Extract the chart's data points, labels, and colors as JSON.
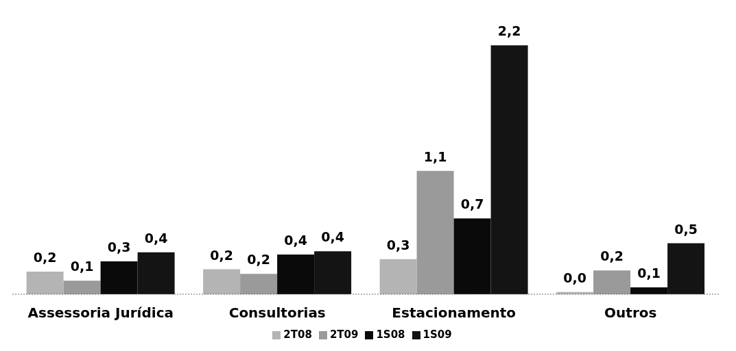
{
  "chart_data": {
    "type": "bar",
    "categories": [
      "Assessoria Jurídica",
      "Consultorias",
      "Estacionamento",
      "Outros"
    ],
    "series": [
      {
        "name": "2T08",
        "color": "#b4b4b4",
        "values": [
          0.2,
          0.22,
          0.31,
          0.02
        ],
        "value_labels": [
          "0,2",
          "0,2",
          "0,3",
          "0,0"
        ]
      },
      {
        "name": "2T09",
        "color": "#9a9a9a",
        "values": [
          0.12,
          0.18,
          1.09,
          0.21
        ],
        "value_labels": [
          "0,1",
          "0,2",
          "1,1",
          "0,2"
        ]
      },
      {
        "name": "1S08",
        "color": "#0a0a0a",
        "values": [
          0.29,
          0.35,
          0.67,
          0.06
        ],
        "value_labels": [
          "0,3",
          "0,4",
          "0,7",
          "0,1"
        ]
      },
      {
        "name": "1S09",
        "color": "#141414",
        "values": [
          0.37,
          0.38,
          2.2,
          0.45
        ],
        "value_labels": [
          "0,4",
          "0,4",
          "2,2",
          "0,5"
        ]
      }
    ],
    "legend": "bottom",
    "tick_labels": "x"
  }
}
